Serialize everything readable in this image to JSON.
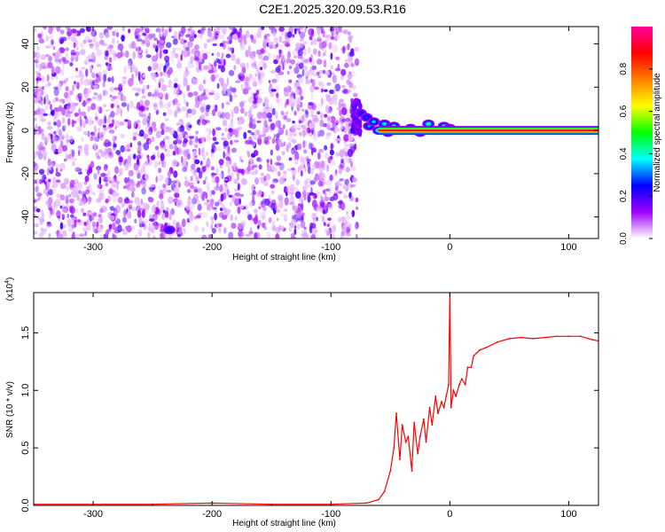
{
  "title": "C2E1.2025.320.09.53.R16",
  "chart_data": [
    {
      "type": "heatmap",
      "xlabel": "Height of straight line (km)",
      "ylabel": "Frequency (Hz)",
      "xlim": [
        -350,
        125
      ],
      "ylim": [
        -50,
        48
      ],
      "x_ticks": [
        -300,
        -200,
        -100,
        0,
        100
      ],
      "x_tick_labels": [
        "-300",
        "-200",
        "-100",
        "0",
        "100"
      ],
      "y_ticks": [
        -40,
        -20,
        0,
        20,
        40
      ],
      "y_tick_labels": [
        "-40",
        "-20",
        "0",
        "20",
        "40"
      ],
      "noise_region_x": [
        -350,
        -78
      ],
      "signal_line": {
        "frequency": 0,
        "x_start": -60,
        "x_end": 125,
        "amplitude": 1.0
      },
      "signal_blobs": [
        {
          "x": -75,
          "y": 8,
          "amp": 0.3
        },
        {
          "x": -70,
          "y": 6,
          "amp": 0.35
        },
        {
          "x": -68,
          "y": 2,
          "amp": 0.4
        },
        {
          "x": -64,
          "y": 4,
          "amp": 0.45
        },
        {
          "x": -60,
          "y": 0,
          "amp": 0.6
        },
        {
          "x": -55,
          "y": 3,
          "amp": 0.5
        },
        {
          "x": -52,
          "y": -1,
          "amp": 0.55
        },
        {
          "x": -47,
          "y": 2,
          "amp": 0.5
        },
        {
          "x": -40,
          "y": 0,
          "amp": 0.75
        },
        {
          "x": -33,
          "y": 1,
          "amp": 0.6
        },
        {
          "x": -25,
          "y": -1,
          "amp": 0.5
        },
        {
          "x": -18,
          "y": 3,
          "amp": 0.55
        },
        {
          "x": -12,
          "y": 0,
          "amp": 0.65
        },
        {
          "x": -5,
          "y": 2,
          "amp": 0.5
        },
        {
          "x": 0,
          "y": 1,
          "amp": 0.6
        },
        {
          "x": -236,
          "y": -46,
          "amp": 0.3
        }
      ],
      "colorbar": {
        "label": "Normalized spectral amplitude",
        "range": [
          0,
          1
        ],
        "ticks": [
          0.0,
          0.2,
          0.4,
          0.6,
          0.8
        ],
        "tick_labels": [
          "0.0",
          "0.2",
          "0.4",
          "0.6",
          "0.8"
        ],
        "colors": [
          "#ffffff",
          "#a000ff",
          "#0000ff",
          "#00ffff",
          "#00ff00",
          "#ffff00",
          "#ff8000",
          "#ff0000",
          "#ff00a0"
        ]
      },
      "grid": false
    },
    {
      "type": "line",
      "xlabel": "Height of straight line (km)",
      "ylabel": "SNR (10 * v/v)",
      "multiplier": "(x10",
      "multiplier_exp": "4",
      "multiplier_end": ")",
      "xlim": [
        -350,
        125
      ],
      "ylim": [
        0,
        1.85
      ],
      "x_ticks": [
        -300,
        -200,
        -100,
        0,
        100
      ],
      "x_tick_labels": [
        "-300",
        "-200",
        "-100",
        "0",
        "100"
      ],
      "y_ticks": [
        0.0,
        0.5,
        1.0,
        1.5
      ],
      "y_tick_labels": [
        "0.0",
        "0.5",
        "1.0",
        "1.5"
      ],
      "color": "#ff0000",
      "series": [
        {
          "x": [
            -350,
            -300,
            -250,
            -200,
            -150,
            -100,
            -70,
            -60,
            -55,
            -50,
            -47,
            -45,
            -42,
            -40,
            -37,
            -35,
            -32,
            -30,
            -27,
            -25,
            -22,
            -20,
            -17,
            -15,
            -12,
            -10,
            -7,
            -5,
            -3,
            -1,
            0,
            1,
            3,
            5,
            8,
            10,
            13,
            15,
            18,
            20,
            25,
            30,
            40,
            50,
            60,
            70,
            80,
            90,
            100,
            110,
            120,
            125
          ],
          "y": [
            0.01,
            0.01,
            0.01,
            0.02,
            0.01,
            0.01,
            0.02,
            0.05,
            0.12,
            0.3,
            0.5,
            0.8,
            0.4,
            0.7,
            0.55,
            0.6,
            0.3,
            0.72,
            0.45,
            0.6,
            0.75,
            0.55,
            0.85,
            0.7,
            0.95,
            0.8,
            0.9,
            0.85,
            0.95,
            1.05,
            1.85,
            0.85,
            1.0,
            0.95,
            1.05,
            1.1,
            1.05,
            1.2,
            1.2,
            1.3,
            1.35,
            1.37,
            1.42,
            1.45,
            1.46,
            1.45,
            1.46,
            1.47,
            1.47,
            1.47,
            1.44,
            1.43
          ]
        }
      ],
      "grid": false
    }
  ]
}
